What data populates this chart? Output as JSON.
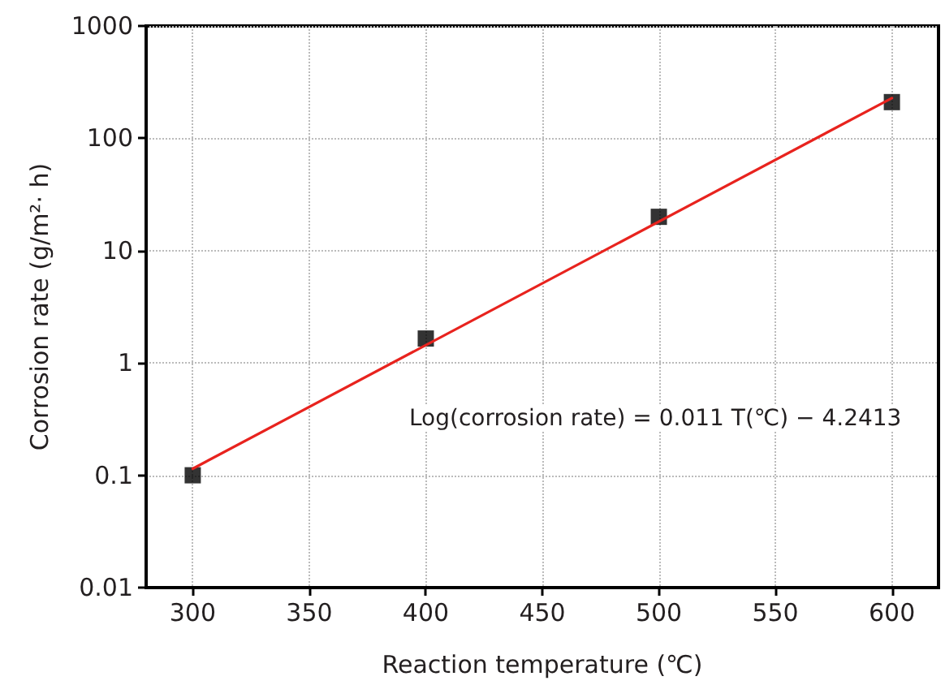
{
  "chart_data": {
    "type": "scatter",
    "xlabel": "Reaction temperature (℃)",
    "ylabel": "Corrosion rate (g/m²· h)",
    "x": [
      300,
      400,
      500,
      600
    ],
    "series": [
      {
        "color": "#000000",
        "marker": "square",
        "values": [
          0.1,
          1.65,
          20,
          210
        ]
      },
      {
        "type": "line",
        "color": "#e8231e",
        "marker": "none",
        "line_style": "solid",
        "x": [
          300,
          600
        ],
        "values": [
          0.1145,
          228
        ]
      }
    ],
    "annotations": [
      "Log(corrosion rate) = 0.011 T(℃) − 4.2413"
    ],
    "xlim": [
      280,
      620
    ],
    "xticks": [
      300,
      350,
      400,
      450,
      500,
      550,
      600
    ],
    "ylim": [
      0.01,
      1000
    ],
    "yticks": [
      0.01,
      0.1,
      1,
      10,
      100,
      1000
    ],
    "log": "y",
    "grid": true
  }
}
